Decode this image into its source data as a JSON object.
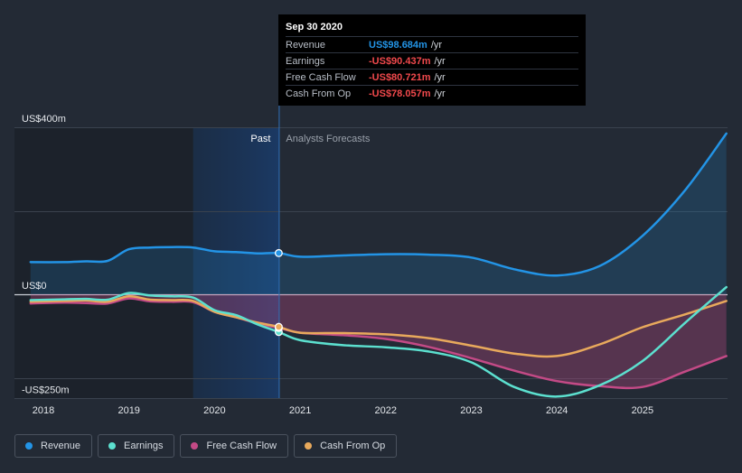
{
  "tooltip": {
    "date": "Sep 30 2020",
    "rows": [
      {
        "label": "Revenue",
        "value": "US$98.684m",
        "unit": "/yr",
        "sign": "pos"
      },
      {
        "label": "Earnings",
        "value": "-US$90.437m",
        "unit": "/yr",
        "sign": "neg"
      },
      {
        "label": "Free Cash Flow",
        "value": "-US$80.721m",
        "unit": "/yr",
        "sign": "neg"
      },
      {
        "label": "Cash From Op",
        "value": "-US$78.057m",
        "unit": "/yr",
        "sign": "neg"
      }
    ]
  },
  "regions": {
    "past": "Past",
    "forecast": "Analysts Forecasts"
  },
  "legend": [
    {
      "label": "Revenue",
      "color": "#2394e6"
    },
    {
      "label": "Earnings",
      "color": "#5ce0cf"
    },
    {
      "label": "Free Cash Flow",
      "color": "#c34a86"
    },
    {
      "label": "Cash From Op",
      "color": "#e8a95c"
    }
  ],
  "chart_data": {
    "type": "line",
    "y_tick_labels": [
      {
        "value": 400,
        "label": "US$400m"
      },
      {
        "value": 0,
        "label": "US$0"
      },
      {
        "value": -250,
        "label": "-US$250m"
      }
    ],
    "ylim": [
      -250,
      400
    ],
    "xlim": [
      2017.85,
      2025.98
    ],
    "x_ticks": [
      2018,
      2019,
      2020,
      2021,
      2022,
      2023,
      2024,
      2025
    ],
    "past_until": 2020.75,
    "highlight_from": 2019.75,
    "series": [
      {
        "name": "Revenue",
        "color": "#2394e6",
        "fill": true,
        "points": [
          [
            2017.85,
            77
          ],
          [
            2018.25,
            77
          ],
          [
            2018.5,
            79
          ],
          [
            2018.75,
            80
          ],
          [
            2019.0,
            108
          ],
          [
            2019.25,
            112
          ],
          [
            2019.5,
            113
          ],
          [
            2019.75,
            112
          ],
          [
            2020.0,
            103
          ],
          [
            2020.25,
            101
          ],
          [
            2020.5,
            98
          ],
          [
            2020.75,
            98.7
          ],
          [
            2021.0,
            90
          ],
          [
            2021.5,
            93
          ],
          [
            2022.0,
            96
          ],
          [
            2022.5,
            95
          ],
          [
            2023.0,
            88
          ],
          [
            2023.5,
            60
          ],
          [
            2024.0,
            45
          ],
          [
            2024.5,
            68
          ],
          [
            2025.0,
            140
          ],
          [
            2025.5,
            250
          ],
          [
            2025.98,
            385
          ]
        ]
      },
      {
        "name": "Earnings",
        "color": "#5ce0cf",
        "fill": false,
        "points": [
          [
            2017.85,
            -14
          ],
          [
            2018.25,
            -12
          ],
          [
            2018.5,
            -11
          ],
          [
            2018.75,
            -13
          ],
          [
            2019.0,
            3
          ],
          [
            2019.25,
            -3
          ],
          [
            2019.5,
            -5
          ],
          [
            2019.75,
            -8
          ],
          [
            2020.0,
            -38
          ],
          [
            2020.25,
            -50
          ],
          [
            2020.5,
            -72
          ],
          [
            2020.75,
            -90.4
          ],
          [
            2021.0,
            -110
          ],
          [
            2021.5,
            -122
          ],
          [
            2022.0,
            -127
          ],
          [
            2022.5,
            -137
          ],
          [
            2023.0,
            -163
          ],
          [
            2023.5,
            -222
          ],
          [
            2024.0,
            -245
          ],
          [
            2024.5,
            -218
          ],
          [
            2025.0,
            -160
          ],
          [
            2025.5,
            -68
          ],
          [
            2025.98,
            17
          ]
        ]
      },
      {
        "name": "Free Cash Flow",
        "color": "#c34a86",
        "fill": true,
        "points": [
          [
            2017.85,
            -22
          ],
          [
            2018.25,
            -20
          ],
          [
            2018.5,
            -21
          ],
          [
            2018.75,
            -22
          ],
          [
            2019.0,
            -10
          ],
          [
            2019.25,
            -17
          ],
          [
            2019.5,
            -18
          ],
          [
            2019.75,
            -19
          ],
          [
            2020.0,
            -42
          ],
          [
            2020.25,
            -55
          ],
          [
            2020.5,
            -70
          ],
          [
            2020.75,
            -80.7
          ],
          [
            2021.0,
            -92
          ],
          [
            2021.5,
            -98
          ],
          [
            2022.0,
            -107
          ],
          [
            2022.5,
            -126
          ],
          [
            2023.0,
            -153
          ],
          [
            2023.5,
            -183
          ],
          [
            2024.0,
            -208
          ],
          [
            2024.5,
            -220
          ],
          [
            2025.0,
            -222
          ],
          [
            2025.5,
            -185
          ],
          [
            2025.98,
            -148
          ]
        ]
      },
      {
        "name": "Cash From Op",
        "color": "#e8a95c",
        "fill": false,
        "points": [
          [
            2017.85,
            -18
          ],
          [
            2018.25,
            -16
          ],
          [
            2018.5,
            -15
          ],
          [
            2018.75,
            -18
          ],
          [
            2019.0,
            -5
          ],
          [
            2019.25,
            -13
          ],
          [
            2019.5,
            -14
          ],
          [
            2019.75,
            -16
          ],
          [
            2020.0,
            -42
          ],
          [
            2020.25,
            -55
          ],
          [
            2020.5,
            -68
          ],
          [
            2020.75,
            -78.1
          ],
          [
            2021.0,
            -92
          ],
          [
            2021.5,
            -93
          ],
          [
            2022.0,
            -96
          ],
          [
            2022.5,
            -105
          ],
          [
            2023.0,
            -123
          ],
          [
            2023.5,
            -142
          ],
          [
            2024.0,
            -148
          ],
          [
            2024.5,
            -120
          ],
          [
            2025.0,
            -79
          ],
          [
            2025.5,
            -48
          ],
          [
            2025.98,
            -16
          ]
        ]
      }
    ]
  }
}
